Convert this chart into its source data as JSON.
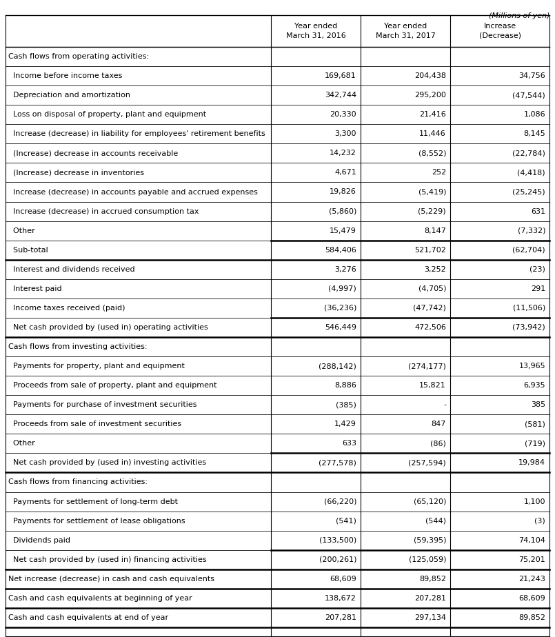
{
  "title_right": "(Millions of yen)",
  "col_headers": [
    "Year ended\nMarch 31, 2016",
    "Year ended\nMarch 31, 2017",
    "Increase\n(Decrease)"
  ],
  "rows": [
    {
      "label": "Cash flows from operating activities:",
      "values": [
        "",
        "",
        ""
      ],
      "type": "section_header",
      "indent": 0
    },
    {
      "label": "  Income before income taxes",
      "values": [
        "169,681",
        "204,438",
        "34,756"
      ],
      "type": "data",
      "indent": 1
    },
    {
      "label": "  Depreciation and amortization",
      "values": [
        "342,744",
        "295,200",
        "(47,544)"
      ],
      "type": "data",
      "indent": 1
    },
    {
      "label": "  Loss on disposal of property, plant and equipment",
      "values": [
        "20,330",
        "21,416",
        "1,086"
      ],
      "type": "data",
      "indent": 1
    },
    {
      "label": "  Increase (decrease) in liability for employees' retirement benefits",
      "values": [
        "3,300",
        "11,446",
        "8,145"
      ],
      "type": "data",
      "indent": 1
    },
    {
      "label": "  (Increase) decrease in accounts receivable",
      "values": [
        "14,232",
        "(8,552)",
        "(22,784)"
      ],
      "type": "data",
      "indent": 1
    },
    {
      "label": "  (Increase) decrease in inventories",
      "values": [
        "4,671",
        "252",
        "(4,418)"
      ],
      "type": "data",
      "indent": 1
    },
    {
      "label": "  Increase (decrease) in accounts payable and accrued expenses",
      "values": [
        "19,826",
        "(5,419)",
        "(25,245)"
      ],
      "type": "data",
      "indent": 1
    },
    {
      "label": "  Increase (decrease) in accrued consumption tax",
      "values": [
        "(5,860)",
        "(5,229)",
        "631"
      ],
      "type": "data",
      "indent": 1
    },
    {
      "label": "  Other",
      "values": [
        "15,479",
        "8,147",
        "(7,332)"
      ],
      "type": "data",
      "indent": 1
    },
    {
      "label": "  Sub-total",
      "values": [
        "584,406",
        "521,702",
        "(62,704)"
      ],
      "type": "subtotal",
      "indent": 0
    },
    {
      "label": "  Interest and dividends received",
      "values": [
        "3,276",
        "3,252",
        "(23)"
      ],
      "type": "data",
      "indent": 1
    },
    {
      "label": "  Interest paid",
      "values": [
        "(4,997)",
        "(4,705)",
        "291"
      ],
      "type": "data",
      "indent": 1
    },
    {
      "label": "  Income taxes received (paid)",
      "values": [
        "(36,236)",
        "(47,742)",
        "(11,506)"
      ],
      "type": "data",
      "indent": 1
    },
    {
      "label": "  Net cash provided by (used in) operating activities",
      "values": [
        "546,449",
        "472,506",
        "(73,942)"
      ],
      "type": "net_total",
      "indent": 0
    },
    {
      "label": "Cash flows from investing activities:",
      "values": [
        "",
        "",
        ""
      ],
      "type": "section_header",
      "indent": 0
    },
    {
      "label": "  Payments for property, plant and equipment",
      "values": [
        "(288,142)",
        "(274,177)",
        "13,965"
      ],
      "type": "data",
      "indent": 1
    },
    {
      "label": "  Proceeds from sale of property, plant and equipment",
      "values": [
        "8,886",
        "15,821",
        "6,935"
      ],
      "type": "data",
      "indent": 1
    },
    {
      "label": "  Payments for purchase of investment securities",
      "values": [
        "(385)",
        "-",
        "385"
      ],
      "type": "data",
      "indent": 1
    },
    {
      "label": "  Proceeds from sale of investment securities",
      "values": [
        "1,429",
        "847",
        "(581)"
      ],
      "type": "data",
      "indent": 1
    },
    {
      "label": "  Other",
      "values": [
        "633",
        "(86)",
        "(719)"
      ],
      "type": "data",
      "indent": 1
    },
    {
      "label": "  Net cash provided by (used in) investing activities",
      "values": [
        "(277,578)",
        "(257,594)",
        "19,984"
      ],
      "type": "net_total",
      "indent": 0
    },
    {
      "label": "Cash flows from financing activities:",
      "values": [
        "",
        "",
        ""
      ],
      "type": "section_header",
      "indent": 0
    },
    {
      "label": "  Payments for settlement of long-term debt",
      "values": [
        "(66,220)",
        "(65,120)",
        "1,100"
      ],
      "type": "data",
      "indent": 1
    },
    {
      "label": "  Payments for settlement of lease obligations",
      "values": [
        "(541)",
        "(544)",
        "(3)"
      ],
      "type": "data",
      "indent": 1
    },
    {
      "label": "  Dividends paid",
      "values": [
        "(133,500)",
        "(59,395)",
        "74,104"
      ],
      "type": "data",
      "indent": 1
    },
    {
      "label": "  Net cash provided by (used in) financing activities",
      "values": [
        "(200,261)",
        "(125,059)",
        "75,201"
      ],
      "type": "net_total",
      "indent": 0
    },
    {
      "label": "Net increase (decrease) in cash and cash equivalents",
      "values": [
        "68,609",
        "89,852",
        "21,243"
      ],
      "type": "bold_data",
      "indent": 0
    },
    {
      "label": "Cash and cash equivalents at beginning of year",
      "values": [
        "138,672",
        "207,281",
        "68,609"
      ],
      "type": "bold_data",
      "indent": 0
    },
    {
      "label": "Cash and cash equivalents at end of year",
      "values": [
        "207,281",
        "297,134",
        "89,852"
      ],
      "type": "bold_data",
      "indent": 0
    }
  ],
  "bg_color": "#ffffff",
  "border_color": "#000000",
  "text_color": "#000000",
  "font_size": 8.0,
  "header_font_size": 8.0
}
